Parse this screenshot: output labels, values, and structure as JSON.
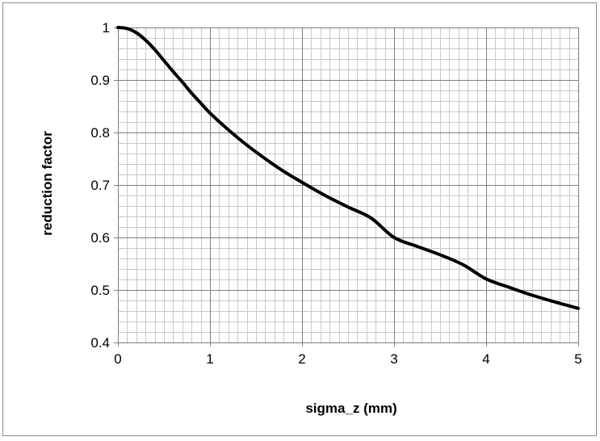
{
  "chart_data": {
    "type": "line",
    "title": "",
    "xlabel": "sigma_z (mm)",
    "ylabel": "reduction factor",
    "xlim": [
      0,
      5
    ],
    "ylim": [
      0.4,
      1
    ],
    "x_ticks": [
      "0",
      "1",
      "2",
      "3",
      "4",
      "5"
    ],
    "y_ticks": [
      "0.4",
      "0.5",
      "0.6",
      "0.7",
      "0.8",
      "0.9",
      "1"
    ],
    "grid": "on",
    "legend": "none",
    "series": [
      {
        "color": "#000000",
        "x": [
          0,
          0.1,
          0.2,
          0.3,
          0.4,
          0.5,
          0.6,
          0.7,
          0.8,
          0.9,
          1.0,
          1.2,
          1.4,
          1.6,
          1.8,
          2.0,
          2.25,
          2.5,
          2.75,
          3.0,
          3.25,
          3.5,
          3.75,
          4.0,
          4.25,
          4.5,
          4.75,
          5.0
        ],
        "y": [
          1.0,
          0.998,
          0.99,
          0.976,
          0.958,
          0.937,
          0.916,
          0.896,
          0.875,
          0.856,
          0.837,
          0.805,
          0.776,
          0.75,
          0.726,
          0.705,
          0.68,
          0.658,
          0.637,
          0.6,
          0.583,
          0.567,
          0.548,
          0.521,
          0.505,
          0.49,
          0.477,
          0.465
        ]
      }
    ]
  }
}
